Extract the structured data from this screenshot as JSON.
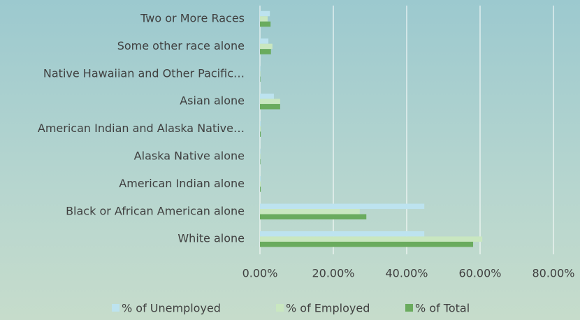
{
  "chart_data": {
    "type": "hbar",
    "categories": [
      "Two or More Races",
      "Some other race alone",
      "Native Hawaiian and Other Pacific…",
      "Asian alone",
      "American Indian and Alaska Native…",
      "Alaska Native alone",
      "American Indian alone",
      "Black or African American alone",
      "White alone"
    ],
    "series": [
      {
        "name": "% of Unemployed",
        "color": "#bde3ef",
        "values": [
          2.7,
          2.3,
          0.1,
          3.8,
          0.2,
          0.1,
          0.2,
          44.8,
          44.8
        ]
      },
      {
        "name": "% of Employed",
        "color": "#c9e7c0",
        "values": [
          2.1,
          3.4,
          0.1,
          5.5,
          0.2,
          0.1,
          0.2,
          27.2,
          60.6
        ]
      },
      {
        "name": "% of Total",
        "color": "#6aab5e",
        "values": [
          2.9,
          3.0,
          0.1,
          5.5,
          0.2,
          0.1,
          0.2,
          29.0,
          58.1
        ]
      }
    ],
    "xlim": [
      0,
      80
    ],
    "xticks": [
      {
        "value": 0,
        "label": "0.00%"
      },
      {
        "value": 20,
        "label": "20.00%"
      },
      {
        "value": 40,
        "label": "40.00%"
      },
      {
        "value": 60,
        "label": "60.00%"
      },
      {
        "value": 80,
        "label": "80.00%"
      }
    ],
    "grid": true,
    "legend": "bottom"
  }
}
